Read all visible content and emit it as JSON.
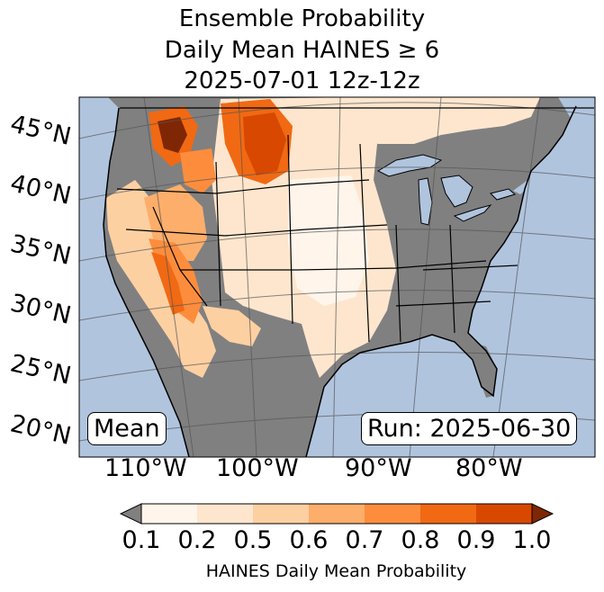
{
  "title": {
    "line1": "Ensemble Probability",
    "line2": "Daily Mean HAINES ≥ 6",
    "line3": "2025-07-01 12z-12z"
  },
  "map": {
    "region": "Continental United States",
    "latitude_labels": [
      "45°N",
      "40°N",
      "35°N",
      "30°N",
      "25°N",
      "20°N"
    ],
    "longitude_labels": [
      "110°W",
      "100°W",
      "90°W",
      "80°W"
    ],
    "colors": {
      "ocean": "#b0c4de",
      "below_threshold": "#808080",
      "borders": "#000000",
      "gridlines": "#555555"
    }
  },
  "annotations": {
    "stat_label": "Mean",
    "run_label": "Run: 2025-06-30"
  },
  "colorbar": {
    "ticks": [
      "0.1",
      "0.2",
      "0.5",
      "0.6",
      "0.7",
      "0.8",
      "0.9",
      "1.0"
    ],
    "colors": [
      "#fff5eb",
      "#fee6ce",
      "#fdd0a2",
      "#fdae6b",
      "#fd8d3c",
      "#f16913",
      "#d94801",
      "#7f2704"
    ],
    "under_color": "#808080",
    "label": "HAINES Daily Mean Probability"
  }
}
